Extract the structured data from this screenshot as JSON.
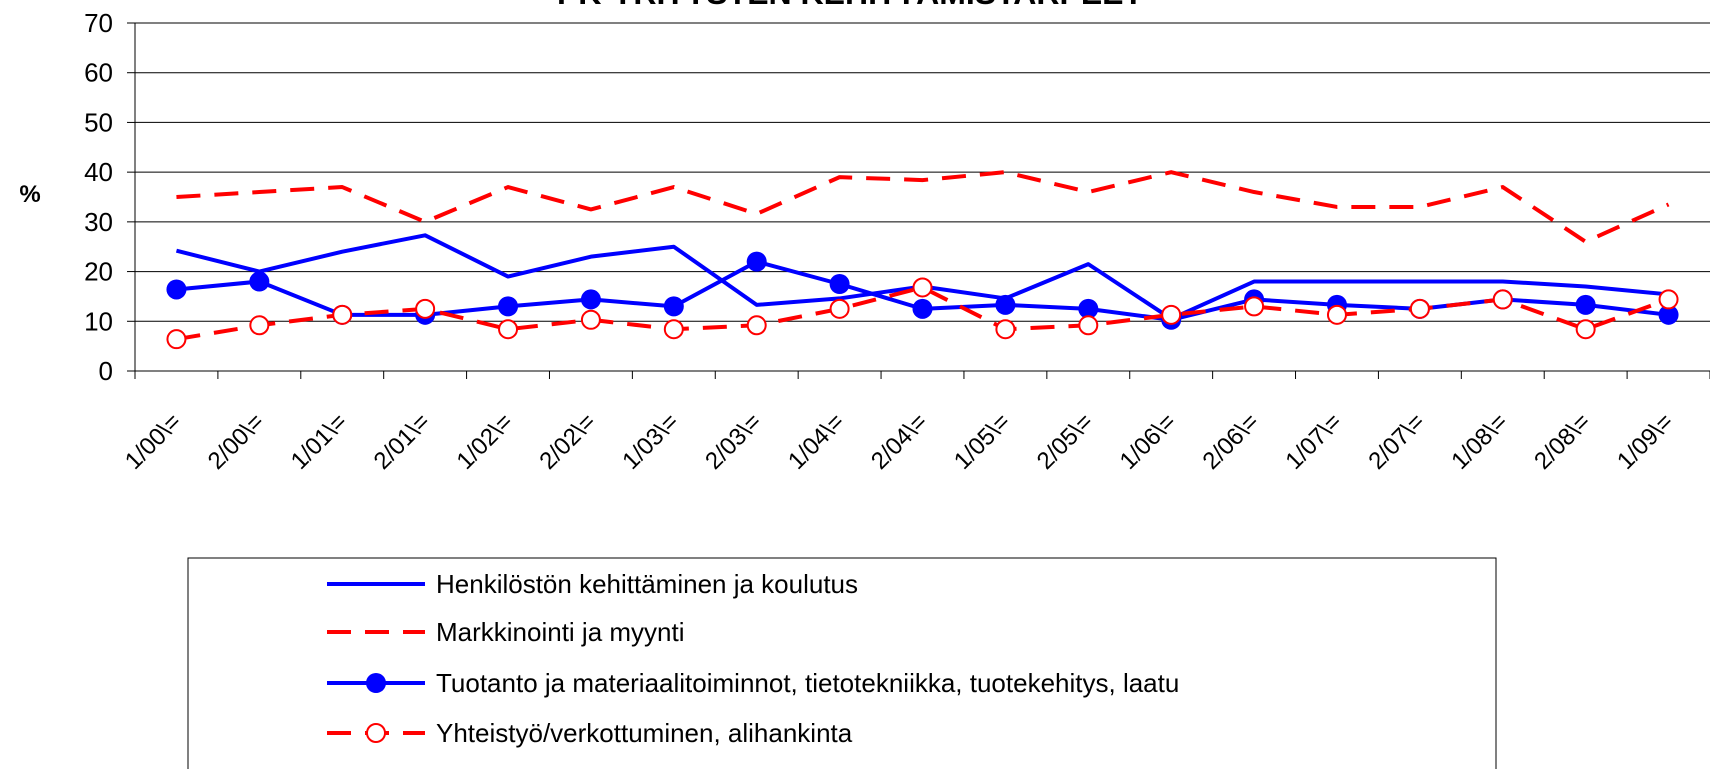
{
  "chart_data": {
    "type": "line",
    "title": "PK-YRITYSTEN KEHITTÄMISTARPEET",
    "y_label": "%",
    "categories": [
      "1/00\\=",
      "2/00\\=",
      "1/01\\=",
      "2/01\\=",
      "1/02\\=",
      "2/02\\=",
      "1/03\\=",
      "2/03\\=",
      "1/04\\=",
      "2/04\\=",
      "1/05\\=",
      "2/05\\=",
      "1/06\\=",
      "2/06\\=",
      "1/07\\=",
      "2/07\\=",
      "1/08\\=",
      "2/08\\=",
      "1/09\\="
    ],
    "ylim": [
      0,
      70
    ],
    "yticks": [
      0,
      10,
      20,
      30,
      40,
      50,
      60,
      70
    ],
    "grid": true,
    "series": [
      {
        "name": "Henkilöstön kehittäminen ja koulutus",
        "color": "#0000ff",
        "style": "solid",
        "marker": "none",
        "values": [
          24.2,
          20,
          24,
          27.3,
          19,
          23,
          25,
          13.3,
          14.6,
          17,
          14.6,
          21.5,
          10.5,
          18,
          18,
          18,
          18,
          17,
          15.4
        ]
      },
      {
        "name": "Markkinointi ja myynti",
        "color": "#ff0000",
        "style": "dashed",
        "marker": "none",
        "values": [
          35,
          36,
          37,
          30,
          37,
          32.5,
          37,
          31.6,
          39,
          38.4,
          40,
          36,
          40,
          36,
          33,
          33,
          37,
          26,
          33.5
        ]
      },
      {
        "name": "Tuotanto ja materiaalitoiminnot, tietotekniikka, tuotekehitys, laatu",
        "color": "#0000ff",
        "style": "solid",
        "marker": "filled-circle",
        "values": [
          16.4,
          18,
          11.3,
          11.3,
          13,
          14.4,
          13,
          22,
          17.5,
          12.5,
          13.3,
          12.5,
          10.3,
          14.4,
          13.3,
          12.5,
          14.4,
          13.3,
          11.3
        ]
      },
      {
        "name": "Yhteistyö/verkottuminen, alihankinta",
        "color": "#ff0000",
        "style": "dashed",
        "marker": "open-circle",
        "values": [
          6.4,
          9.2,
          11.3,
          12.5,
          8.4,
          10.3,
          8.4,
          9.2,
          12.5,
          16.8,
          8.4,
          9.2,
          11.3,
          13,
          11.3,
          12.5,
          14.4,
          8.4,
          14.4
        ]
      }
    ]
  }
}
